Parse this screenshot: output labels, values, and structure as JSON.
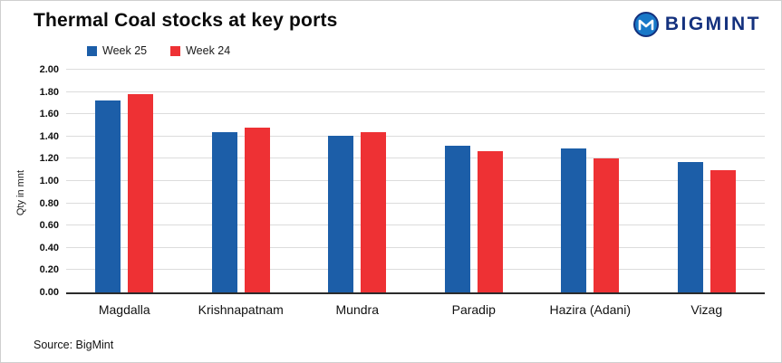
{
  "header": {
    "title": "Thermal Coal stocks at key ports",
    "brand": "BIGMINT"
  },
  "legend": [
    {
      "label": "Week 25",
      "color": "#1c5ea8"
    },
    {
      "label": "Week 24",
      "color": "#ee3134"
    }
  ],
  "footer": {
    "source": "Source: BigMint"
  },
  "chart_data": {
    "type": "bar",
    "title": "Thermal Coal stocks at key ports",
    "categories": [
      "Magdalla",
      "Krishnapatnam",
      "Mundra",
      "Paradip",
      "Hazira (Adani)",
      "Vizag"
    ],
    "series": [
      {
        "name": "Week 25",
        "color": "#1c5ea8",
        "values": [
          1.72,
          1.44,
          1.41,
          1.32,
          1.29,
          1.17
        ]
      },
      {
        "name": "Week 24",
        "color": "#ee3134",
        "values": [
          1.78,
          1.48,
          1.44,
          1.27,
          1.2,
          1.1
        ]
      }
    ],
    "xlabel": "",
    "ylabel": "Qty in mnt",
    "ylim": [
      0,
      2.0
    ],
    "ytick_step": 0.2,
    "grid": true,
    "legend_position": "top-left"
  }
}
